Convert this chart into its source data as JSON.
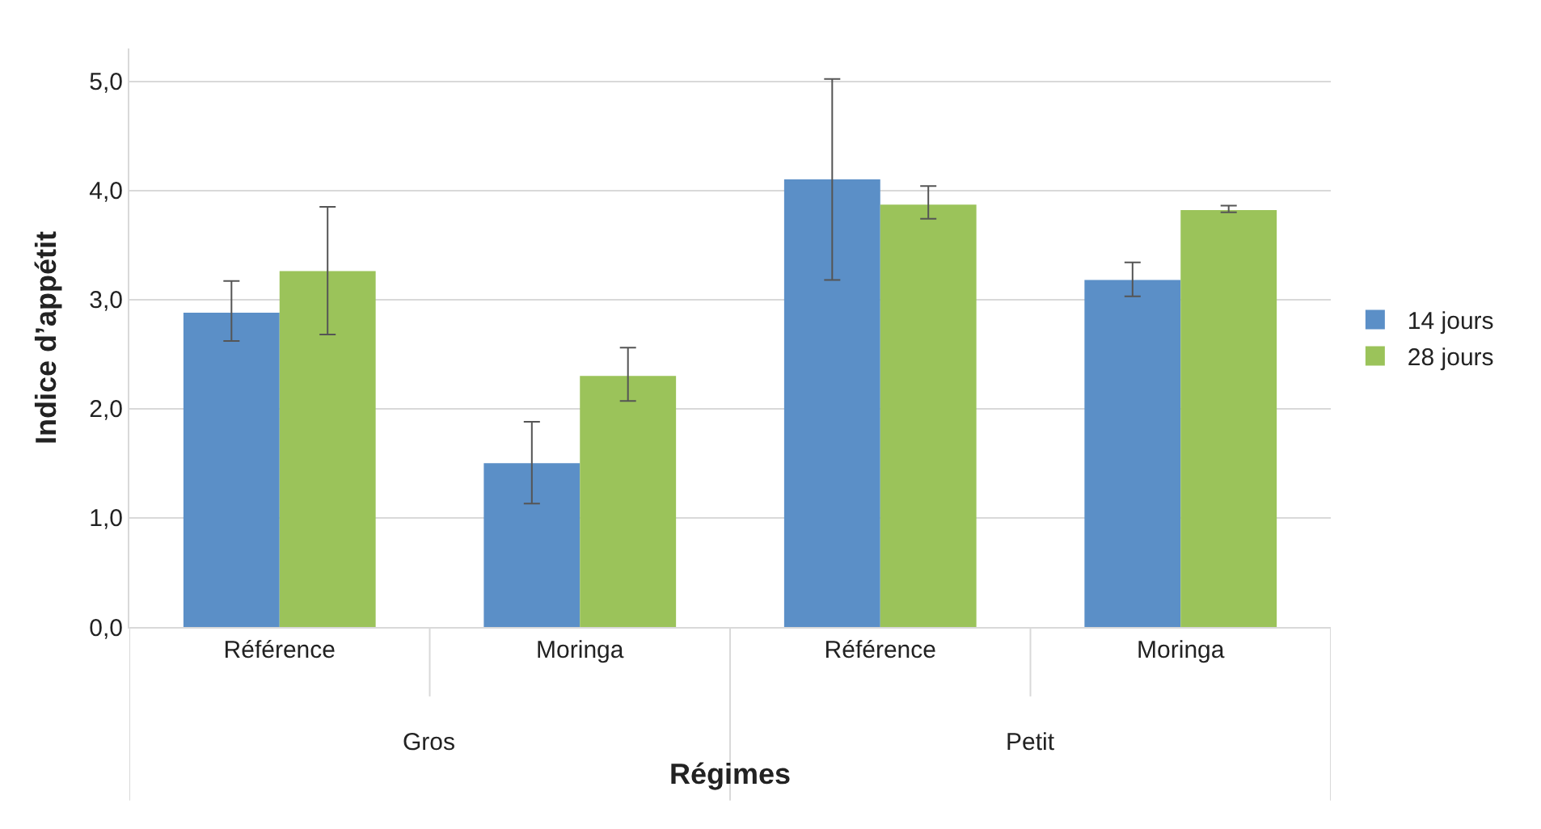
{
  "chart_data": {
    "type": "bar",
    "categories": [
      "Référence",
      "Moringa",
      "Référence",
      "Moringa"
    ],
    "series": [
      {
        "name": "14 jours",
        "color": "#5b8fc7",
        "values": [
          2.88,
          1.5,
          4.1,
          3.18
        ],
        "errors": [
          [
            2.62,
            3.17
          ],
          [
            1.13,
            1.88
          ],
          [
            3.18,
            5.02
          ],
          [
            3.03,
            3.34
          ]
        ]
      },
      {
        "name": "28 jours",
        "color": "#9bc35a",
        "values": [
          3.26,
          2.3,
          3.87,
          3.82
        ],
        "errors": [
          [
            2.68,
            3.85
          ],
          [
            2.07,
            2.56
          ],
          [
            3.74,
            4.04
          ],
          [
            3.8,
            3.86
          ]
        ]
      }
    ],
    "annotations": [
      "Gros",
      "Petit"
    ],
    "xlabel": "Régimes",
    "ylabel": "Indice d’appétit",
    "ylim": [
      0,
      5.3
    ],
    "yticks": [
      {
        "value": 0,
        "label": "0,0"
      },
      {
        "value": 1,
        "label": "1,0"
      },
      {
        "value": 2,
        "label": "2,0"
      },
      {
        "value": 3,
        "label": "3,0"
      },
      {
        "value": 4,
        "label": "4,0"
      },
      {
        "value": 5,
        "label": "5,0"
      }
    ],
    "grid": "y",
    "legend": "right"
  }
}
